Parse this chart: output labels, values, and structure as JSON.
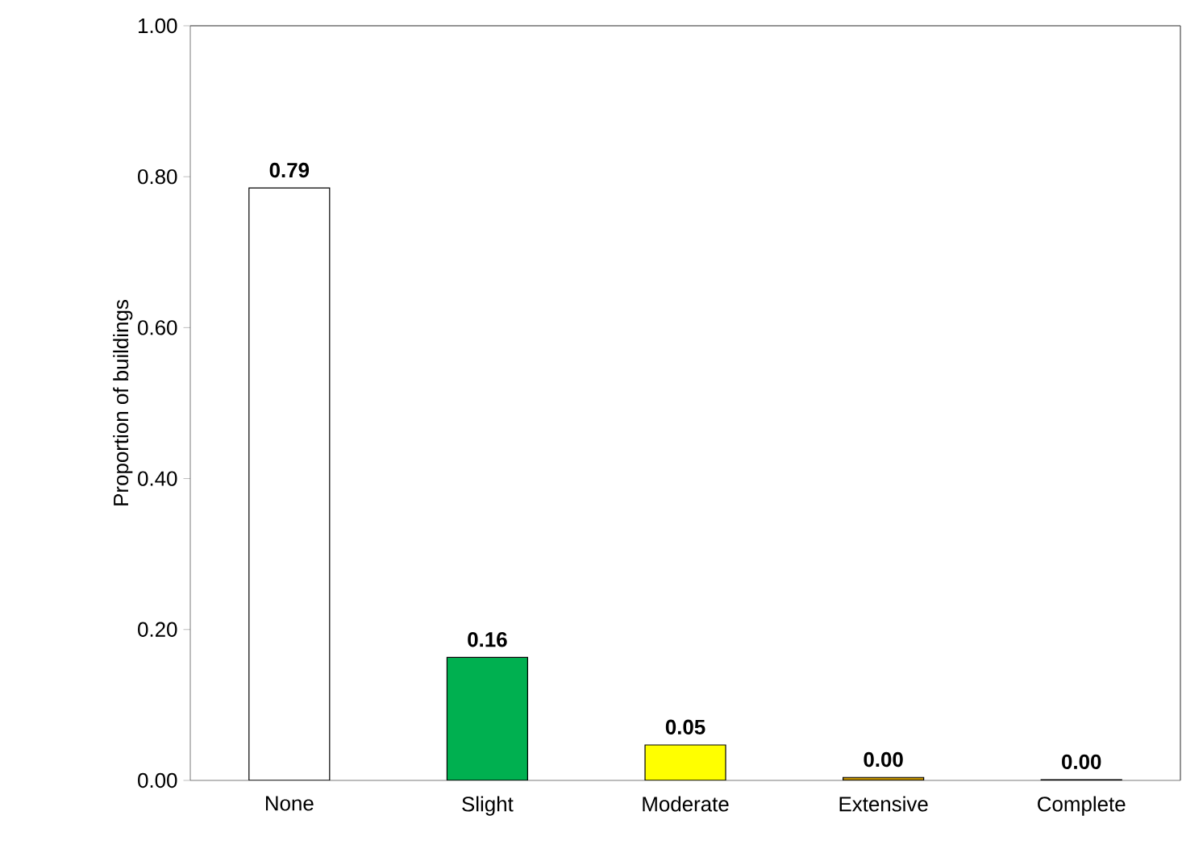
{
  "chart_data": {
    "type": "bar",
    "ylabel": "Proportion of buildings",
    "categories": [
      "None",
      "Slight",
      "Moderate",
      "Extensive",
      "Complete"
    ],
    "values": [
      0.785,
      0.163,
      0.047,
      0.004,
      0.001
    ],
    "colors": [
      "#ffffff",
      "#00b050",
      "#ffff00",
      "#c09000",
      "#a6a6a6"
    ],
    "value_labels": [
      "0.79",
      "0.16",
      "0.05",
      "0.00",
      "0.00"
    ],
    "ylim": [
      0,
      1
    ],
    "yticks": [
      {
        "value": 0,
        "label": "0.00"
      },
      {
        "value": 0.2,
        "label": "0.20"
      },
      {
        "value": 0.4,
        "label": "0.40"
      },
      {
        "value": 0.6,
        "label": "0.60"
      },
      {
        "value": 0.8,
        "label": "0.80"
      },
      {
        "value": 1,
        "label": "1.00"
      }
    ],
    "grid": false
  }
}
